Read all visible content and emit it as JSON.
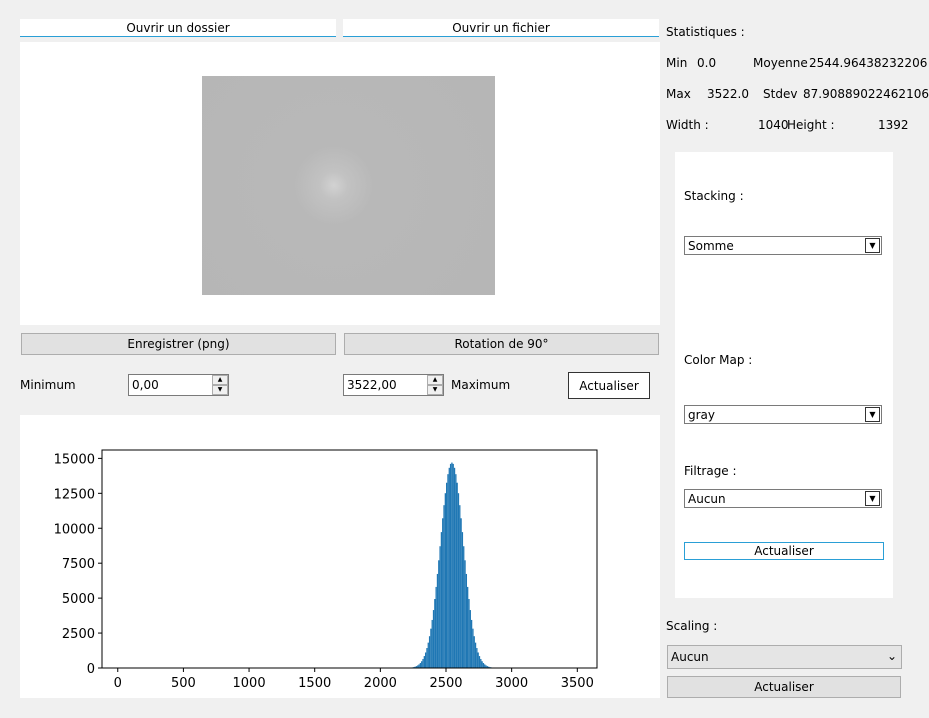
{
  "buttons": {
    "open_folder": "Ouvrir un dossier",
    "open_file": "Ouvrir un fichier",
    "save_png": "Enregistrer (png)",
    "rotate": "Rotation de 90°",
    "update_range": "Actualiser",
    "update_panel": "Actualiser",
    "update_scaling": "Actualiser"
  },
  "range": {
    "min_label": "Minimum",
    "min_value": "0,00",
    "max_value": "3522,00",
    "max_label": "Maximum"
  },
  "stats": {
    "title": "Statistiques :",
    "min_label": "Min",
    "min_value": "0.0",
    "mean_label": "Moyenne",
    "mean_value": "2544.96438232206",
    "max_label": "Max",
    "max_value": "3522.0",
    "stdev_label": "Stdev",
    "stdev_value": "87.90889022462106",
    "width_label": "Width :",
    "width_value": "1040",
    "height_label": "Height :",
    "height_value": "1392"
  },
  "panel": {
    "stacking_label": "Stacking :",
    "stacking_value": "Somme",
    "colormap_label": "Color Map :",
    "colormap_value": "gray",
    "filter_label": "Filtrage :",
    "filter_value": "Aucun"
  },
  "scaling": {
    "label": "Scaling :",
    "value": "Aucun"
  },
  "chart_data": {
    "type": "bar",
    "xlim": [
      -120,
      3650
    ],
    "ylim": [
      0,
      15600
    ],
    "xticks": [
      0,
      500,
      1000,
      1500,
      2000,
      2500,
      3000,
      3500
    ],
    "yticks": [
      0,
      2500,
      5000,
      7500,
      10000,
      12500,
      15000
    ],
    "xtick_labels": [
      "0",
      "500",
      "1000",
      "1500",
      "2000",
      "2500",
      "3000",
      "3500"
    ],
    "ytick_labels": [
      "0",
      "2500",
      "5000",
      "7500",
      "10000",
      "12500",
      "15000"
    ],
    "peak_center": 2545,
    "peak_stdev": 88,
    "peak_max": 14700,
    "bin_width": 10,
    "bar_color": "#1f77b4"
  }
}
